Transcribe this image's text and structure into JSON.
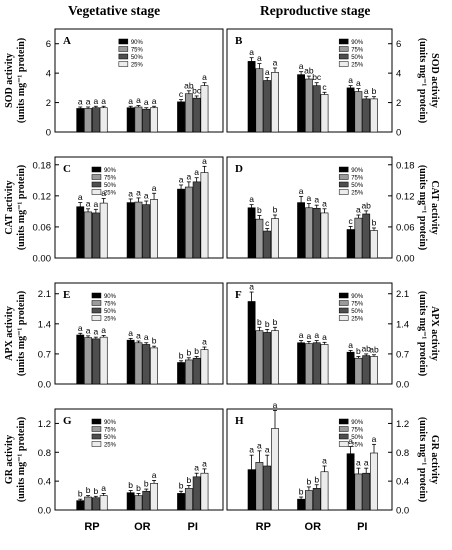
{
  "header": {
    "left": "Vegetative stage",
    "right": "Reproductive stage"
  },
  "categories_label": [
    "RP",
    "OR",
    "PI"
  ],
  "colors": [
    "#000000",
    "#9b9b9b",
    "#4e4e4e",
    "#ececec"
  ],
  "chart_data": [
    {
      "type": "bar",
      "panel": "A",
      "title": "",
      "ylabel": [
        "SOD activity",
        "(units mg⁻¹ protein)"
      ],
      "categories": [
        "RP",
        "OR",
        "PI"
      ],
      "ylim": [
        0,
        7
      ],
      "yticks": [
        0,
        2,
        4,
        6
      ],
      "legend": "top-center",
      "series": [
        {
          "name": "90%",
          "values": [
            1.6,
            1.65,
            2.05
          ],
          "errors": [
            0.1,
            0.1,
            0.15
          ],
          "labels": [
            "a",
            "a",
            "c"
          ]
        },
        {
          "name": "75%",
          "values": [
            1.6,
            1.7,
            2.6
          ],
          "errors": [
            0.1,
            0.1,
            0.2
          ],
          "labels": [
            "a",
            "a",
            "ab"
          ]
        },
        {
          "name": "50%",
          "values": [
            1.65,
            1.55,
            2.3
          ],
          "errors": [
            0.1,
            0.1,
            0.15
          ],
          "labels": [
            "a",
            "a",
            "bc"
          ]
        },
        {
          "name": "25%",
          "values": [
            1.65,
            1.65,
            3.15
          ],
          "errors": [
            0.1,
            0.1,
            0.2
          ],
          "labels": [
            "a",
            "a",
            "a"
          ]
        }
      ]
    },
    {
      "type": "bar",
      "panel": "B",
      "title": "",
      "ylabel": [
        "SOD activity",
        "(units mg⁻¹ protein)"
      ],
      "categories": [
        "RP",
        "OR",
        "PI"
      ],
      "ylim": [
        0,
        7
      ],
      "yticks": [
        0,
        2,
        4,
        6
      ],
      "legend": "top-right",
      "series": [
        {
          "name": "90%",
          "values": [
            4.8,
            3.9,
            3.0
          ],
          "errors": [
            0.25,
            0.2,
            0.15
          ],
          "labels": [
            "a",
            "a",
            "a"
          ]
        },
        {
          "name": "75%",
          "values": [
            4.3,
            3.6,
            2.75
          ],
          "errors": [
            0.35,
            0.2,
            0.2
          ],
          "labels": [
            "a",
            "ab",
            "a"
          ]
        },
        {
          "name": "50%",
          "values": [
            3.5,
            3.15,
            2.25
          ],
          "errors": [
            0.2,
            0.2,
            0.15
          ],
          "labels": [
            "a",
            "bc",
            "a"
          ]
        },
        {
          "name": "25%",
          "values": [
            4.05,
            2.55,
            2.25
          ],
          "errors": [
            0.3,
            0.15,
            0.15
          ],
          "labels": [
            "a",
            "c",
            "b"
          ]
        }
      ]
    },
    {
      "type": "bar",
      "panel": "C",
      "title": "",
      "ylabel": [
        "CAT activity",
        "(units mg⁻¹ protein)"
      ],
      "categories": [
        "RP",
        "OR",
        "PI"
      ],
      "ylim": [
        0,
        0.195
      ],
      "yticks": [
        0.0,
        0.06,
        0.12,
        0.18
      ],
      "legend": "top-left",
      "series": [
        {
          "name": "90%",
          "values": [
            0.099,
            0.107,
            0.133
          ],
          "errors": [
            0.008,
            0.007,
            0.008
          ],
          "labels": [
            "a",
            "a",
            "a"
          ]
        },
        {
          "name": "75%",
          "values": [
            0.089,
            0.108,
            0.137
          ],
          "errors": [
            0.006,
            0.008,
            0.01
          ],
          "labels": [
            "a",
            "a",
            "a"
          ]
        },
        {
          "name": "50%",
          "values": [
            0.087,
            0.103,
            0.147
          ],
          "errors": [
            0.007,
            0.007,
            0.008
          ],
          "labels": [
            "a",
            "a",
            "a"
          ]
        },
        {
          "name": "25%",
          "values": [
            0.106,
            0.113,
            0.165
          ],
          "errors": [
            0.009,
            0.012,
            0.012
          ],
          "labels": [
            "a",
            "a",
            "a"
          ]
        }
      ]
    },
    {
      "type": "bar",
      "panel": "D",
      "title": "",
      "ylabel": [
        "CAT activity",
        "(units mg⁻¹ protein)"
      ],
      "categories": [
        "RP",
        "OR",
        "PI"
      ],
      "ylim": [
        0,
        0.195
      ],
      "yticks": [
        0.0,
        0.06,
        0.12,
        0.18
      ],
      "legend": "top-right",
      "series": [
        {
          "name": "90%",
          "values": [
            0.097,
            0.107,
            0.055
          ],
          "errors": [
            0.006,
            0.012,
            0.006
          ],
          "labels": [
            "a",
            "a",
            "c"
          ]
        },
        {
          "name": "75%",
          "values": [
            0.075,
            0.097,
            0.077
          ],
          "errors": [
            0.007,
            0.008,
            0.006
          ],
          "labels": [
            "b",
            "a",
            "a"
          ]
        },
        {
          "name": "50%",
          "values": [
            0.052,
            0.096,
            0.085
          ],
          "errors": [
            0.005,
            0.006,
            0.006
          ],
          "labels": [
            "c",
            "a",
            "ab"
          ]
        },
        {
          "name": "25%",
          "values": [
            0.076,
            0.087,
            0.053
          ],
          "errors": [
            0.007,
            0.008,
            0.005
          ],
          "labels": [
            "b",
            "a",
            "b"
          ]
        }
      ]
    },
    {
      "type": "bar",
      "panel": "E",
      "title": "",
      "ylabel": [
        "APX activity",
        "(units mg⁻¹ protein)"
      ],
      "categories": [
        "RP",
        "OR",
        "PI"
      ],
      "ylim": [
        0,
        2.35
      ],
      "yticks": [
        0.0,
        0.7,
        1.4,
        2.1
      ],
      "legend": "top-left",
      "series": [
        {
          "name": "90%",
          "values": [
            1.14,
            1.02,
            0.5
          ],
          "errors": [
            0.04,
            0.04,
            0.04
          ],
          "labels": [
            "a",
            "a",
            "b"
          ]
        },
        {
          "name": "75%",
          "values": [
            1.08,
            0.96,
            0.56
          ],
          "errors": [
            0.04,
            0.04,
            0.05
          ],
          "labels": [
            "a",
            "a",
            "b"
          ]
        },
        {
          "name": "50%",
          "values": [
            1.05,
            0.92,
            0.6
          ],
          "errors": [
            0.04,
            0.04,
            0.04
          ],
          "labels": [
            "a",
            "a",
            "b"
          ]
        },
        {
          "name": "25%",
          "values": [
            1.09,
            0.84,
            0.8
          ],
          "errors": [
            0.04,
            0.04,
            0.06
          ],
          "labels": [
            "a",
            "b",
            "a"
          ]
        }
      ]
    },
    {
      "type": "bar",
      "panel": "F",
      "title": "",
      "ylabel": [
        "APX activity",
        "(units mg⁻¹ protein)"
      ],
      "categories": [
        "RP",
        "OR",
        "PI"
      ],
      "ylim": [
        0,
        2.35
      ],
      "yticks": [
        0.0,
        0.7,
        1.4,
        2.1
      ],
      "legend": "top-right",
      "series": [
        {
          "name": "90%",
          "values": [
            1.92,
            0.96,
            0.74
          ],
          "errors": [
            0.22,
            0.05,
            0.04
          ],
          "labels": [
            "a",
            "a",
            "a"
          ]
        },
        {
          "name": "75%",
          "values": [
            1.24,
            0.94,
            0.6
          ],
          "errors": [
            0.08,
            0.05,
            0.04
          ],
          "labels": [
            "b",
            "a",
            "b"
          ]
        },
        {
          "name": "50%",
          "values": [
            1.2,
            0.96,
            0.66
          ],
          "errors": [
            0.07,
            0.05,
            0.04
          ],
          "labels": [
            "b",
            "a",
            "ab"
          ]
        },
        {
          "name": "25%",
          "values": [
            1.24,
            0.92,
            0.64
          ],
          "errors": [
            0.08,
            0.05,
            0.04
          ],
          "labels": [
            "b",
            "a",
            "ab"
          ]
        }
      ]
    },
    {
      "type": "bar",
      "panel": "G",
      "title": "",
      "ylabel": [
        "GR activity",
        "(units mg⁻¹ protein)"
      ],
      "categories": [
        "RP",
        "OR",
        "PI"
      ],
      "ylim": [
        0,
        1.4
      ],
      "yticks": [
        0.0,
        0.4,
        0.8,
        1.2
      ],
      "legend": "top-left",
      "series": [
        {
          "name": "90%",
          "values": [
            0.13,
            0.24,
            0.23
          ],
          "errors": [
            0.02,
            0.03,
            0.03
          ],
          "labels": [
            "b",
            "b",
            "b"
          ]
        },
        {
          "name": "75%",
          "values": [
            0.18,
            0.2,
            0.3
          ],
          "errors": [
            0.02,
            0.03,
            0.04
          ],
          "labels": [
            "b",
            "b",
            "b"
          ]
        },
        {
          "name": "50%",
          "values": [
            0.17,
            0.26,
            0.46
          ],
          "errors": [
            0.02,
            0.03,
            0.05
          ],
          "labels": [
            "b",
            "b",
            "a"
          ]
        },
        {
          "name": "25%",
          "values": [
            0.2,
            0.37,
            0.51
          ],
          "errors": [
            0.03,
            0.04,
            0.06
          ],
          "labels": [
            "a",
            "a",
            "a"
          ]
        }
      ]
    },
    {
      "type": "bar",
      "panel": "H",
      "title": "",
      "ylabel": [
        "GR activity",
        "(units mg⁻¹ protein)"
      ],
      "categories": [
        "RP",
        "OR",
        "PI"
      ],
      "ylim": [
        0,
        1.4
      ],
      "yticks": [
        0.0,
        0.4,
        0.8,
        1.2
      ],
      "legend": "top-right",
      "series": [
        {
          "name": "90%",
          "values": [
            0.56,
            0.15,
            0.78
          ],
          "errors": [
            0.2,
            0.03,
            0.1
          ],
          "labels": [
            "a",
            "b",
            "a"
          ]
        },
        {
          "name": "75%",
          "values": [
            0.66,
            0.27,
            0.5
          ],
          "errors": [
            0.16,
            0.05,
            0.08
          ],
          "labels": [
            "a",
            "b",
            "a"
          ]
        },
        {
          "name": "50%",
          "values": [
            0.61,
            0.3,
            0.51
          ],
          "errors": [
            0.15,
            0.05,
            0.07
          ],
          "labels": [
            "a",
            "b",
            "a"
          ]
        },
        {
          "name": "25%",
          "values": [
            1.13,
            0.53,
            0.79
          ],
          "errors": [
            0.25,
            0.08,
            0.12
          ],
          "labels": [
            "a",
            "a",
            "a"
          ]
        }
      ]
    }
  ]
}
